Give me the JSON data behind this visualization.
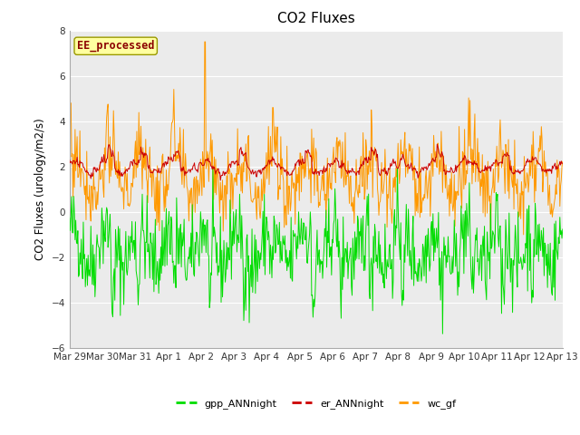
{
  "title": "CO2 Fluxes",
  "ylabel": "CO2 Fluxes (urology/m2/s)",
  "ylim": [
    -6,
    8
  ],
  "yticks": [
    -6,
    -4,
    -2,
    0,
    2,
    4,
    6,
    8
  ],
  "n_days": 15,
  "pts_per_day": 48,
  "color_gpp": "#00DD00",
  "color_er": "#CC0000",
  "color_wc": "#FF9900",
  "label_gpp": "gpp_ANNnight",
  "label_er": "er_ANNnight",
  "label_wc": "wc_gf",
  "annotation_text": "EE_processed",
  "annotation_color": "#8B0000",
  "annotation_bg": "#FFFFA0",
  "annotation_edge": "#999900",
  "bg_color": "#FFFFFF",
  "plot_bg": "#EBEBEB",
  "grid_color": "#FFFFFF",
  "line_width": 0.7,
  "xtick_labels": [
    "Mar 29",
    "Mar 30",
    "Mar 31",
    "Apr 1",
    "Apr 2",
    "Apr 3",
    "Apr 4",
    "Apr 5",
    "Apr 6",
    "Apr 7",
    "Apr 8",
    "Apr 9",
    "Apr 10",
    "Apr 11",
    "Apr 12",
    "Apr 13"
  ],
  "legend_fontsize": 8,
  "title_fontsize": 11,
  "tick_fontsize": 7.5,
  "ylabel_fontsize": 8.5
}
